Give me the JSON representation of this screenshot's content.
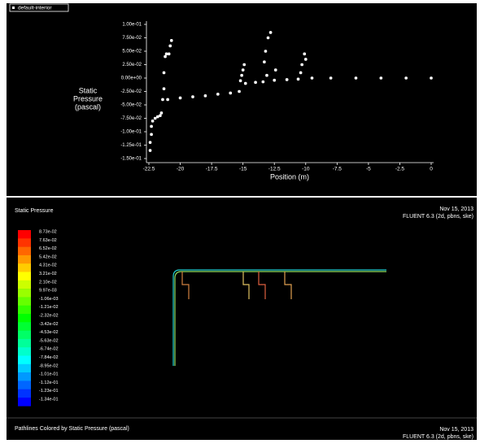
{
  "chart_data": {
    "type": "scatter",
    "legend": "default-interior",
    "ylabel": [
      "Static",
      "Pressure",
      "(pascal)"
    ],
    "xlabel": "Position (m)",
    "color": "#ffffff",
    "x": [
      -22.4,
      -22.4,
      -22.3,
      -22.3,
      -22.2,
      -22.0,
      -21.8,
      -21.6,
      -21.5,
      -21.4,
      -21.3,
      -21.3,
      -21.2,
      -21.1,
      -20.9,
      -20.8,
      -20.7,
      -21.0,
      -20.0,
      -19.0,
      -18.0,
      -17.0,
      -16.0,
      -15.3,
      -15.2,
      -15.1,
      -15.0,
      -14.9,
      -14.8,
      -14.0,
      -13.4,
      -13.3,
      -13.2,
      -13.0,
      -12.8,
      -13.1,
      -12.4,
      -12.5,
      -11.5,
      -10.6,
      -10.4,
      -10.3,
      -10.1,
      -10.0,
      -9.5,
      -8,
      -6,
      -4,
      -2,
      0
    ],
    "y": [
      -0.135,
      -0.12,
      -0.105,
      -0.09,
      -0.08,
      -0.075,
      -0.072,
      -0.07,
      -0.065,
      -0.04,
      -0.02,
      0.01,
      0.04,
      0.045,
      0.045,
      0.06,
      0.07,
      -0.04,
      -0.037,
      -0.035,
      -0.033,
      -0.03,
      -0.028,
      -0.025,
      -0.005,
      0.005,
      0.015,
      0.025,
      -0.01,
      -0.008,
      -0.007,
      0.03,
      0.05,
      0.075,
      0.085,
      0.005,
      0.015,
      -0.004,
      -0.003,
      -0.002,
      0.01,
      0.025,
      0.045,
      0.035,
      0,
      0,
      0,
      0,
      0,
      0
    ],
    "xlim": [
      -22.5,
      0
    ],
    "xticks": [
      -22.5,
      -20,
      -17.5,
      -15,
      -12.5,
      -10,
      -7.5,
      -5,
      -2.5,
      0
    ],
    "ylim": [
      -0.15,
      0.1
    ],
    "yticks": [
      {
        "value": 0.1,
        "label": "1.00e-01"
      },
      {
        "value": 0.075,
        "label": "7.50e-02"
      },
      {
        "value": 0.05,
        "label": "5.00e-02"
      },
      {
        "value": 0.025,
        "label": "2.50e-02"
      },
      {
        "value": 0,
        "label": "0.00e+00"
      },
      {
        "value": -0.025,
        "label": "-2.50e-02"
      },
      {
        "value": -0.05,
        "label": "-5.00e-02"
      },
      {
        "value": -0.075,
        "label": "-7.50e-02"
      },
      {
        "value": -0.1,
        "label": "-1.00e-01"
      },
      {
        "value": -0.125,
        "label": "-1.25e-01"
      },
      {
        "value": -0.15,
        "label": "-1.50e-01"
      }
    ]
  },
  "viewer": {
    "title": "Static Pressure",
    "date": "Nov 15, 2013",
    "version": "FLUENT 6.3 (2d, pbns, ske)",
    "colorbar_labels": [
      "8.73e-02",
      "7.63e-02",
      "6.52e-02",
      "5.42e-02",
      "4.31e-02",
      "3.21e-02",
      "2.10e-02",
      "9.97e-03",
      "-1.06e-03",
      "-1.21e-02",
      "-2.32e-02",
      "-3.42e-02",
      "-4.53e-02",
      "-5.63e-02",
      "-6.74e-02",
      "-7.84e-02",
      "-8.95e-02",
      "-1.01e-01",
      "-1.12e-01",
      "-1.23e-01",
      "-1.34e-01"
    ],
    "footer": "Pathlines Colored by Static Pressure (pascal)",
    "footer_date": "Nov 15, 2013",
    "footer_version": "FLUENT 6.3 (2d, pbns, ske)"
  }
}
